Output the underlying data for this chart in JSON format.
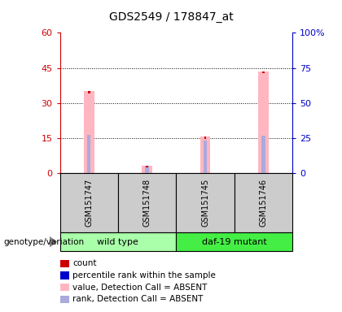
{
  "title": "GDS2549 / 178847_at",
  "samples": [
    "GSM151747",
    "GSM151748",
    "GSM151745",
    "GSM151746"
  ],
  "pink_bars": [
    35.0,
    3.2,
    15.5,
    43.5
  ],
  "blue_ranks": [
    27.5,
    5.0,
    23.0,
    26.5
  ],
  "red_counts": [
    1.0,
    1.0,
    1.0,
    1.0
  ],
  "ylim_left": [
    0,
    60
  ],
  "ylim_right": [
    0,
    100
  ],
  "yticks_left": [
    0,
    15,
    30,
    45,
    60
  ],
  "yticks_right": [
    0,
    25,
    50,
    75,
    100
  ],
  "pink_color": "#FFB6C1",
  "blue_color": "#AAAADD",
  "red_color": "#CC0000",
  "bg_color": "#FFFFFF",
  "tick_color_left": "#CC0000",
  "tick_color_right": "#0000CC",
  "group_label": "genotype/variation",
  "group1_label": "wild type",
  "group2_label": "daf-19 mutant",
  "group1_color": "#AAFFAA",
  "group2_color": "#44EE44",
  "sample_bg": "#CCCCCC",
  "legend_items": [
    {
      "label": "count",
      "color": "#CC0000"
    },
    {
      "label": "percentile rank within the sample",
      "color": "#0000CC"
    },
    {
      "label": "value, Detection Call = ABSENT",
      "color": "#FFB6C1"
    },
    {
      "label": "rank, Detection Call = ABSENT",
      "color": "#AAAADD"
    }
  ]
}
